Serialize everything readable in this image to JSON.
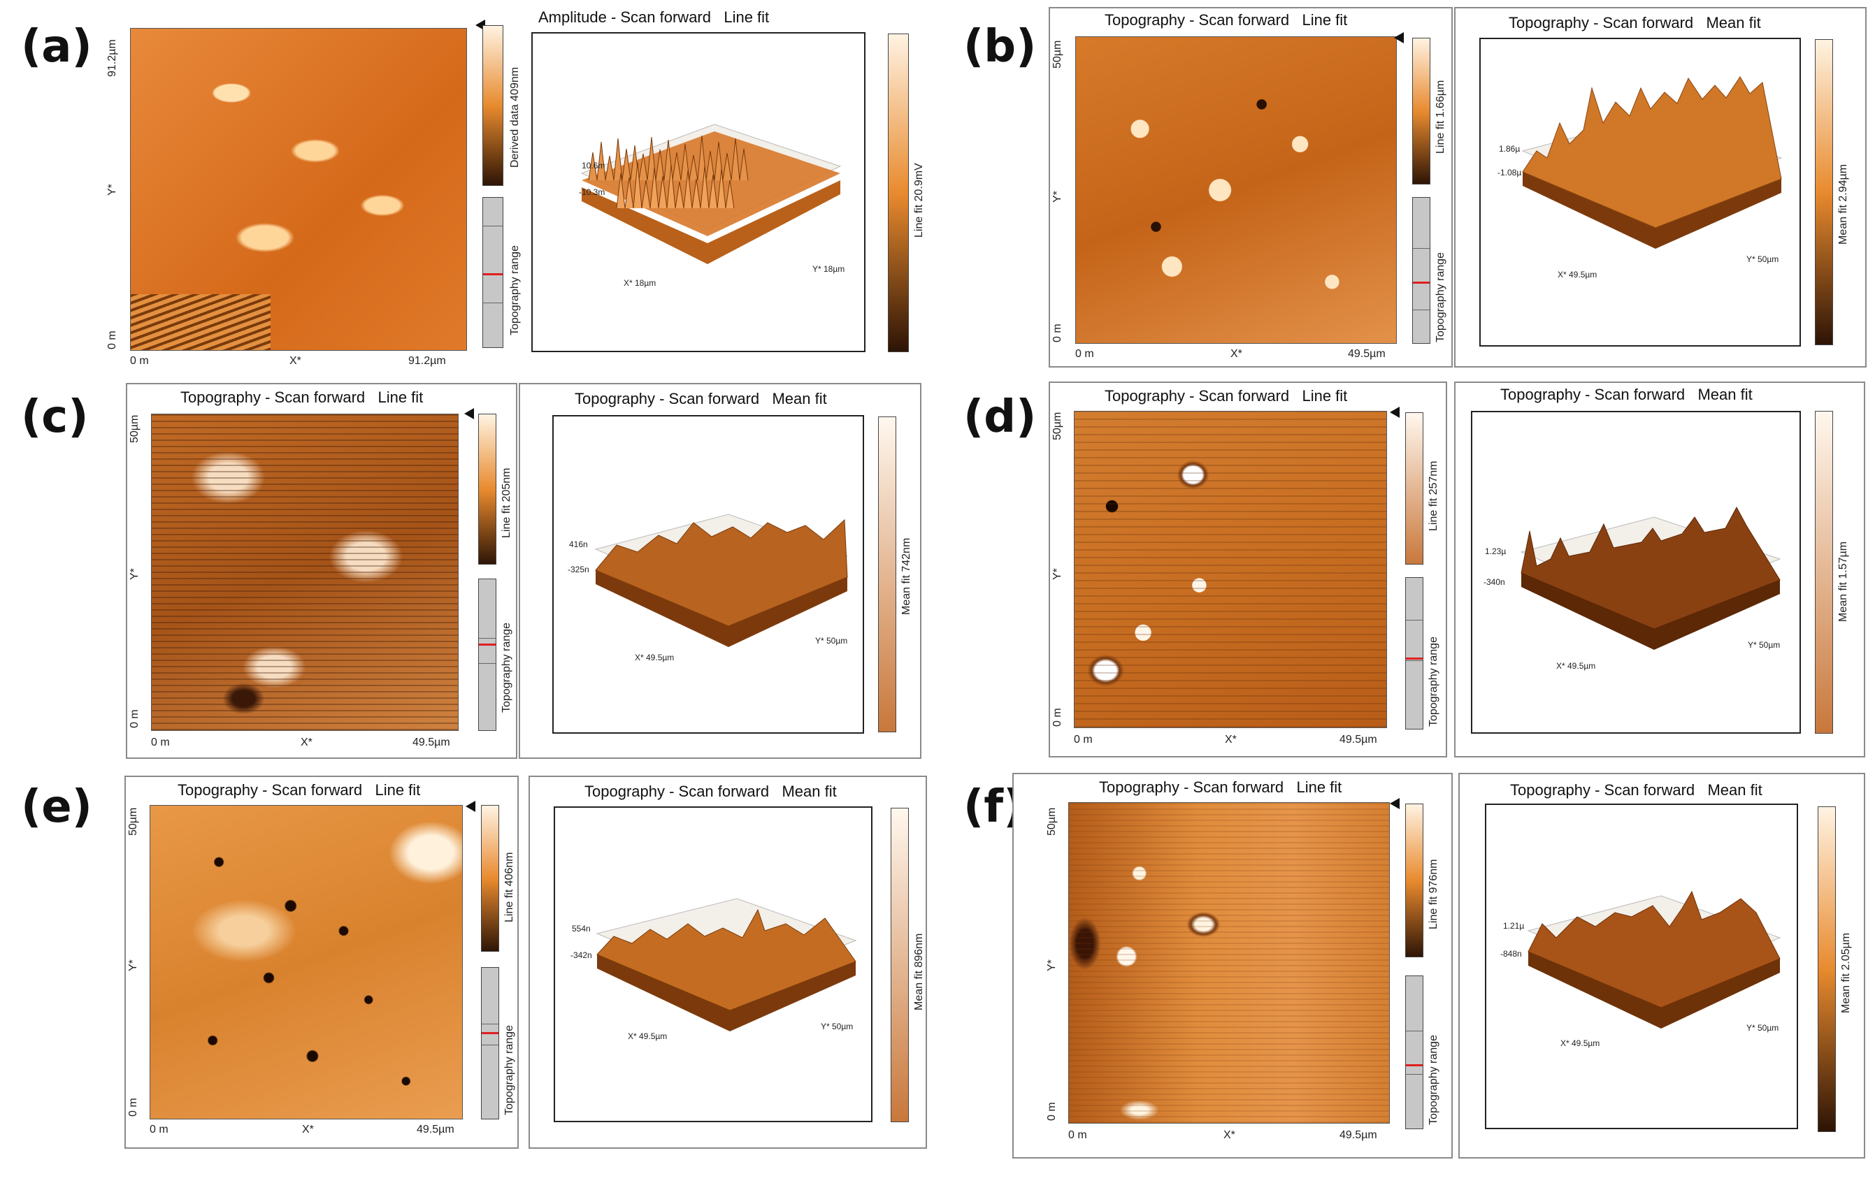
{
  "colors": {
    "afm_orange": "#e07a1c",
    "afm_dark": "#3a1a05",
    "afm_light": "#f7d7a8"
  },
  "panels": {
    "a": {
      "label": "(a)",
      "left_colorbar": "Derived data 409nm",
      "left_range": "Topography range",
      "y_top": "91.2µm",
      "y_mid": "Y*",
      "y_bottom": "0 m",
      "x_left": "0 m",
      "x_mid": "X*",
      "x_right": "91.2µm",
      "right_title": "Amplitude - Scan forward   Line fit",
      "right_colorbar": "Line fit 20.9mV",
      "z_top": "10.6m",
      "z_bottom": "-10.3m",
      "x3d": "X* 18µm",
      "y3d": "Y* 18µm"
    },
    "b": {
      "label": "(b)",
      "left_title": "Topography - Scan forward   Line fit",
      "left_colorbar": "Line fit 1.66µm",
      "left_range": "Topography range",
      "y_top": "50µm",
      "y_mid": "Y*",
      "y_bottom": "0 m",
      "x_left": "0 m",
      "x_mid": "X*",
      "x_right": "49.5µm",
      "right_title": "Topography - Scan forward   Mean fit",
      "right_colorbar": "Mean fit 2.94µm",
      "z_top": "1.86µ",
      "z_bottom": "-1.08µ",
      "x3d": "X* 49.5µm",
      "y3d": "Y* 50µm"
    },
    "c": {
      "label": "(c)",
      "left_title": "Topography - Scan forward   Line fit",
      "left_colorbar": "Line fit 205nm",
      "left_range": "Topography range",
      "y_top": "50µm",
      "y_mid": "Y*",
      "y_bottom": "0 m",
      "x_left": "0 m",
      "x_mid": "X*",
      "x_right": "49.5µm",
      "right_title": "Topography - Scan forward   Mean fit",
      "right_colorbar": "Mean fit 742nm",
      "z_top": "416n",
      "z_bottom": "-325n",
      "x3d": "X* 49.5µm",
      "y3d": "Y* 50µm"
    },
    "d": {
      "label": "(d)",
      "left_title": "Topography - Scan forward   Line fit",
      "left_colorbar": "Line fit 257nm",
      "left_range": "Topography range",
      "y_top": "50µm",
      "y_mid": "Y*",
      "y_bottom": "0 m",
      "x_left": "0 m",
      "x_mid": "X*",
      "x_right": "49.5µm",
      "right_title": "Topography - Scan forward   Mean fit",
      "right_colorbar": "Mean fit 1.57µm",
      "z_top": "1.23µ",
      "z_bottom": "-340n",
      "x3d": "X* 49.5µm",
      "y3d": "Y* 50µm"
    },
    "e": {
      "label": "(e)",
      "left_title": "Topography - Scan forward   Line fit",
      "left_colorbar": "Line fit 406nm",
      "left_range": "Topography range",
      "y_top": "50µm",
      "y_mid": "Y*",
      "y_bottom": "0 m",
      "x_left": "0 m",
      "x_mid": "X*",
      "x_right": "49.5µm",
      "right_title": "Topography - Scan forward   Mean fit",
      "right_colorbar": "Mean fit 896nm",
      "z_top": "554n",
      "z_bottom": "-342n",
      "x3d": "X* 49.5µm",
      "y3d": "Y* 50µm"
    },
    "f": {
      "label": "(f)",
      "left_title": "Topography - Scan forward   Line fit",
      "left_colorbar": "Line fit 976nm",
      "left_range": "Topography range",
      "y_top": "50µm",
      "y_mid": "Y*",
      "y_bottom": "0 m",
      "x_left": "0 m",
      "x_mid": "X*",
      "x_right": "49.5µm",
      "right_title": "Topography - Scan forward   Mean fit",
      "right_colorbar": "Mean fit 2.05µm",
      "z_top": "1.21µ",
      "z_bottom": "-848n",
      "x3d": "X* 49.5µm",
      "y3d": "Y* 50µm"
    }
  }
}
